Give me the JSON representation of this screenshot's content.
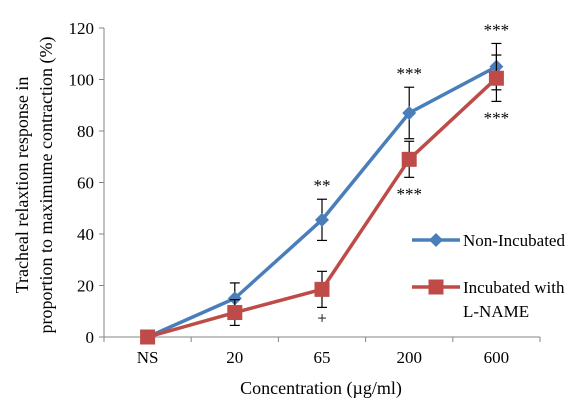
{
  "chart_data": {
    "type": "line",
    "xlabel": "Concentration (µg/ml)",
    "ylabel": [
      "Tracheal relaxtion response in",
      "proportion to maximume contraction (%)"
    ],
    "categories": [
      "NS",
      "20",
      "65",
      "200",
      "600"
    ],
    "ylim": [
      0,
      120
    ],
    "yticks": [
      0,
      20,
      40,
      60,
      80,
      100,
      120
    ],
    "grid": false,
    "legend_position": "right",
    "series": [
      {
        "name": "Non-Incubated",
        "color": "#4a7ebb",
        "marker": "diamond",
        "values": [
          0,
          15,
          45.5,
          87,
          105
        ],
        "error": [
          0,
          6,
          8,
          10,
          9
        ]
      },
      {
        "name": "Incubated with L-NAME",
        "legend_lines": [
          "Incubated with",
          "L-NAME"
        ],
        "color": "#be4b48",
        "marker": "square",
        "values": [
          0,
          9.5,
          18.5,
          69,
          100.5
        ],
        "error": [
          0,
          5,
          7,
          7,
          9
        ]
      }
    ],
    "annotations": [
      {
        "category": "65",
        "series": 0,
        "text": "**",
        "where": "above"
      },
      {
        "category": "200",
        "series": 0,
        "text": "***",
        "where": "above"
      },
      {
        "category": "600",
        "series": 0,
        "text": "***",
        "where": "above"
      },
      {
        "category": "65",
        "series": 1,
        "text": "+",
        "where": "below"
      },
      {
        "category": "200",
        "series": 1,
        "text": "***",
        "where": "below"
      },
      {
        "category": "600",
        "series": 1,
        "text": "***",
        "where": "below"
      }
    ]
  }
}
